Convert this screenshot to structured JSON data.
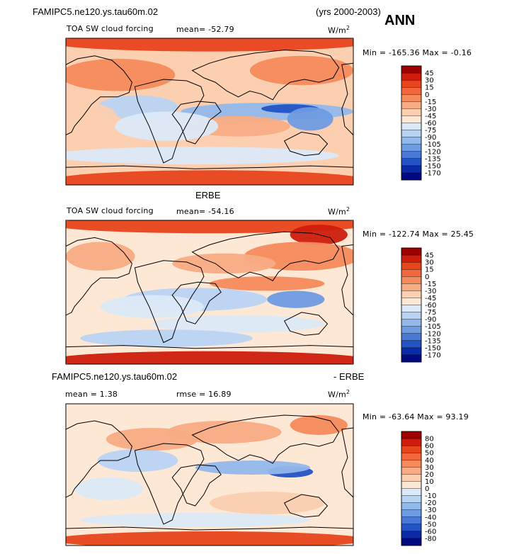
{
  "header": {
    "case_name": "FAMIPC5.ne120.ys.tau60m.02",
    "years": "(yrs 2000-2003)",
    "season": "ANN"
  },
  "panels": [
    {
      "title": "",
      "variable": "TOA SW cloud forcing",
      "stat1": "mean=  -52.79",
      "stat2": "",
      "units": "W/m",
      "units_sup": "2",
      "minmax": "Min = -165.36  Max =  -0.16"
    },
    {
      "title": "ERBE",
      "variable": "TOA SW cloud forcing",
      "stat1": "mean=  -54.16",
      "stat2": "",
      "units": "W/m",
      "units_sup": "2",
      "minmax": "Min = -122.74  Max =  25.45"
    },
    {
      "title_left": "FAMIPC5.ne120.ys.tau60m.02",
      "title_right": "- ERBE",
      "variable": "",
      "stat1": "mean =    1.38",
      "stat2": "rmse =   16.89",
      "units": "W/m",
      "units_sup": "2",
      "minmax": "Min = -63.64  Max =  93.19"
    }
  ],
  "chart_data": [
    {
      "type": "heatmap",
      "title": "TOA SW cloud forcing",
      "units": "W/m2",
      "mean": -52.79,
      "min": -165.36,
      "max": -0.16,
      "levels": [
        "45",
        "30",
        "15",
        "0",
        "-15",
        "-30",
        "-45",
        "-60",
        "-75",
        "-90",
        "-105",
        "-120",
        "-135",
        "-150",
        "-170"
      ],
      "colors": [
        "#9e0000",
        "#cf1c0c",
        "#e8451c",
        "#f2683c",
        "#f58a5c",
        "#f8ac84",
        "#fbcfb0",
        "#fde8d6",
        "#dce9f8",
        "#b9d3f3",
        "#93b8ec",
        "#6f9be3",
        "#4a78d6",
        "#2353c4",
        "#0a2aa8",
        "#000a80"
      ]
    },
    {
      "type": "heatmap",
      "title": "ERBE",
      "units": "W/m2",
      "mean": -54.16,
      "min": -122.74,
      "max": 25.45,
      "levels": [
        "45",
        "30",
        "15",
        "0",
        "-15",
        "-30",
        "-45",
        "-60",
        "-75",
        "-90",
        "-105",
        "-120",
        "-135",
        "-150",
        "-170"
      ],
      "colors": [
        "#9e0000",
        "#cf1c0c",
        "#e8451c",
        "#f2683c",
        "#f58a5c",
        "#f8ac84",
        "#fbcfb0",
        "#fde8d6",
        "#dce9f8",
        "#b9d3f3",
        "#93b8ec",
        "#6f9be3",
        "#4a78d6",
        "#2353c4",
        "#0a2aa8",
        "#000a80"
      ]
    },
    {
      "type": "heatmap",
      "title": "FAMIPC5.ne120.ys.tau60m.02 - ERBE",
      "units": "W/m2",
      "mean": 1.38,
      "rmse": 16.89,
      "min": -63.64,
      "max": 93.19,
      "levels": [
        "80",
        "60",
        "50",
        "40",
        "30",
        "20",
        "10",
        "0",
        "-10",
        "-20",
        "-30",
        "-40",
        "-50",
        "-60",
        "-80"
      ],
      "colors": [
        "#9e0000",
        "#cf1c0c",
        "#e8451c",
        "#f2683c",
        "#f58a5c",
        "#f8ac84",
        "#fbcfb0",
        "#fde8d6",
        "#dce9f8",
        "#b9d3f3",
        "#93b8ec",
        "#6f9be3",
        "#4a78d6",
        "#2353c4",
        "#0a2aa8",
        "#000a80"
      ]
    }
  ]
}
